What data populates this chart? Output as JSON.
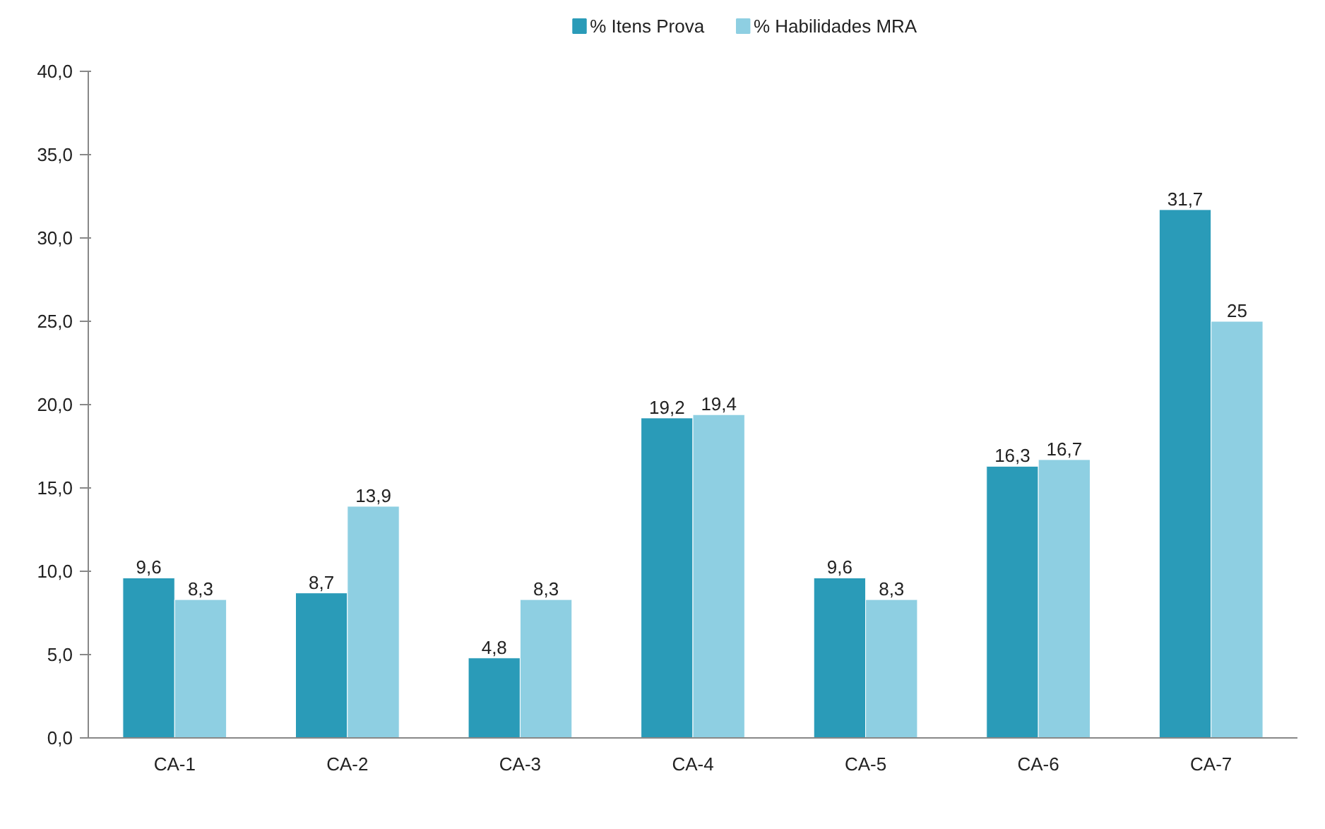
{
  "chart_data": {
    "type": "bar",
    "categories": [
      "CA-1",
      "CA-2",
      "CA-3",
      "CA-4",
      "CA-5",
      "CA-6",
      "CA-7"
    ],
    "series": [
      {
        "name": "% Itens Prova",
        "color": "#2a9bb8",
        "values": [
          9.6,
          8.7,
          4.8,
          19.2,
          9.6,
          16.3,
          31.7
        ],
        "value_labels": [
          "9,6",
          "8,7",
          "4,8",
          "19,2",
          "9,6",
          "16,3",
          "31,7"
        ]
      },
      {
        "name": "% Habilidades MRA",
        "color": "#8ecfe2",
        "values": [
          8.3,
          13.9,
          8.3,
          19.4,
          8.3,
          16.7,
          25
        ],
        "value_labels": [
          "8,3",
          "13,9",
          "8,3",
          "19,4",
          "8,3",
          "16,7",
          "25"
        ]
      }
    ],
    "ylim": [
      0,
      40
    ],
    "yticks": [
      {
        "value": 0,
        "label": "0,0"
      },
      {
        "value": 5,
        "label": "5,0"
      },
      {
        "value": 10,
        "label": "10,0"
      },
      {
        "value": 15,
        "label": "15,0"
      },
      {
        "value": 20,
        "label": "20,0"
      },
      {
        "value": 25,
        "label": "25,0"
      },
      {
        "value": 30,
        "label": "30,0"
      },
      {
        "value": 35,
        "label": "35,0"
      },
      {
        "value": 40,
        "label": "40,0"
      }
    ],
    "grid": false,
    "legend": "top"
  }
}
